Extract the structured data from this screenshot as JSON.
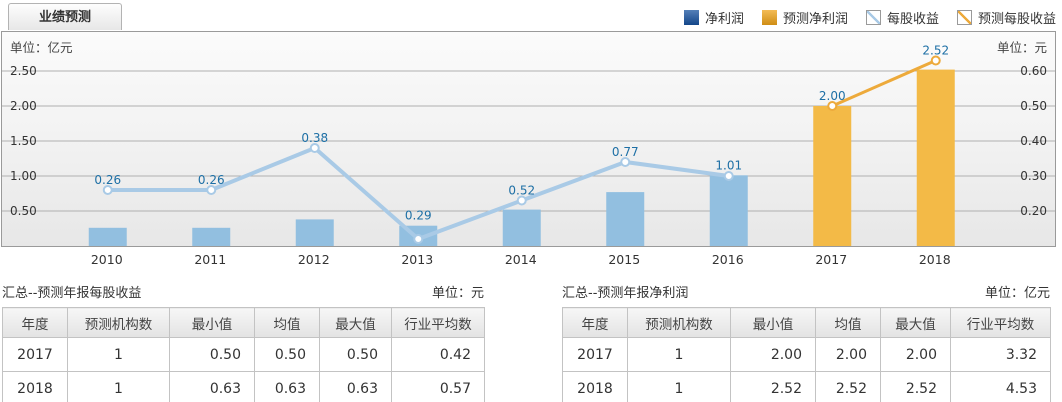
{
  "tab": {
    "label": "业绩预测"
  },
  "legend": [
    {
      "label": "净利润",
      "swatch": "solid",
      "color": "#17519e"
    },
    {
      "label": "预测净利润",
      "swatch": "solid",
      "color": "#efa318"
    },
    {
      "label": "每股收益",
      "swatch": "diagonal",
      "color": "#a9cae6"
    },
    {
      "label": "预测每股收益",
      "swatch": "diagonal",
      "color": "#edaa3b"
    }
  ],
  "chart_data": {
    "type": "combo-bar-line-dual-axis",
    "categories": [
      "2010",
      "2011",
      "2012",
      "2013",
      "2014",
      "2015",
      "2016",
      "2017",
      "2018"
    ],
    "left_axis": {
      "unit_label": "单位：亿元",
      "ticks_top_down": [
        "2.50",
        "2.00",
        "1.50",
        "1.00",
        "0.50"
      ],
      "min": 0
    },
    "right_axis": {
      "unit_label": "单位：元",
      "ticks_top_down": [
        "0.60",
        "0.50",
        "0.40",
        "0.30",
        "0.20"
      ],
      "min": 0.1
    },
    "grid": true,
    "legend_position": "top-right",
    "series": [
      {
        "name": "净利润",
        "type": "bar",
        "axis": "left",
        "color": "#92bfe0",
        "label_color": "#1d6fa5",
        "values": [
          0.26,
          0.26,
          0.38,
          0.29,
          0.52,
          0.77,
          1.01,
          null,
          null
        ]
      },
      {
        "name": "预测净利润",
        "type": "bar",
        "axis": "left",
        "color": "#f3ba47",
        "label_color": "#1d6fa5",
        "values": [
          null,
          null,
          null,
          null,
          null,
          null,
          null,
          2.0,
          2.52
        ]
      },
      {
        "name": "每股收益",
        "type": "line",
        "axis": "right",
        "color": "#a9cae6",
        "estimated": true,
        "values": [
          0.26,
          0.26,
          0.38,
          0.12,
          0.23,
          0.34,
          0.3,
          null,
          null
        ]
      },
      {
        "name": "预测每股收益",
        "type": "line",
        "axis": "right",
        "color": "#edaa3b",
        "values": [
          null,
          null,
          null,
          null,
          null,
          null,
          null,
          0.5,
          0.63
        ]
      }
    ]
  },
  "summary_tables": [
    {
      "title": "汇总--预测年报每股收益",
      "unit": "单位：元",
      "headers": [
        "年度",
        "预测机构数",
        "最小值",
        "均值",
        "最大值",
        "行业平均数"
      ],
      "rows": [
        [
          "2017",
          "1",
          "0.50",
          "0.50",
          "0.50",
          "0.42"
        ],
        [
          "2018",
          "1",
          "0.63",
          "0.63",
          "0.63",
          "0.57"
        ]
      ]
    },
    {
      "title": "汇总--预测年报净利润",
      "unit": "单位：亿元",
      "headers": [
        "年度",
        "预测机构数",
        "最小值",
        "均值",
        "最大值",
        "行业平均数"
      ],
      "rows": [
        [
          "2017",
          "1",
          "2.00",
          "2.00",
          "2.00",
          "3.32"
        ],
        [
          "2018",
          "1",
          "2.52",
          "2.52",
          "2.52",
          "4.53"
        ]
      ]
    }
  ]
}
